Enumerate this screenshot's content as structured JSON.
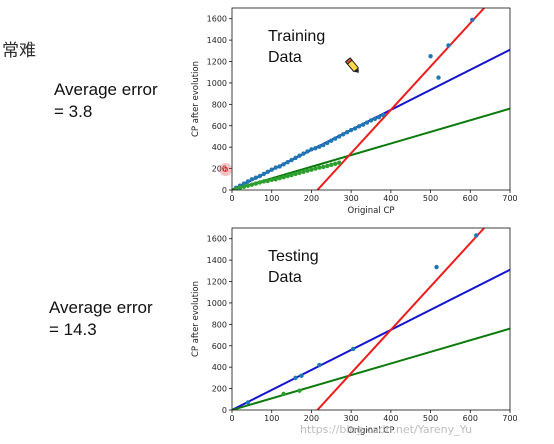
{
  "slide_fragment": "常难",
  "left_labels": [
    {
      "line1": "Average error",
      "line2": "= 3.8"
    },
    {
      "line1": "Average error",
      "line2": "= 14.3"
    }
  ],
  "watermark": "https://blog.csdn.net/Yareny_Yu",
  "icons": [
    "cursor-dot-icon",
    "pen-cursor-icon"
  ],
  "chart_data": [
    {
      "type": "scatter",
      "annotation": "Training\nData",
      "xlabel": "Original CP",
      "ylabel": "CP after evolution",
      "xlim": [
        0,
        700
      ],
      "ylim": [
        0,
        1700
      ],
      "xticks": [
        0,
        100,
        200,
        300,
        400,
        500,
        600,
        700
      ],
      "yticks": [
        0,
        200,
        400,
        600,
        800,
        1000,
        1200,
        1400,
        1600
      ],
      "grid": false,
      "series": [
        {
          "kind": "points",
          "color": "#1f77b4",
          "x": [
            10,
            20,
            30,
            40,
            50,
            60,
            70,
            80,
            90,
            100,
            110,
            120,
            130,
            140,
            150,
            160,
            170,
            180,
            190,
            200,
            210,
            220,
            230,
            240,
            250,
            260,
            270,
            280,
            290,
            300,
            310,
            320,
            330,
            340,
            350,
            360,
            370,
            380,
            500,
            520,
            545,
            605
          ],
          "y": [
            20,
            40,
            60,
            80,
            100,
            115,
            130,
            150,
            170,
            190,
            210,
            220,
            240,
            260,
            280,
            300,
            320,
            340,
            360,
            380,
            390,
            405,
            420,
            440,
            460,
            480,
            500,
            520,
            540,
            560,
            575,
            595,
            610,
            630,
            650,
            665,
            680,
            700,
            1250,
            1050,
            1350,
            1590
          ]
        },
        {
          "kind": "points",
          "color": "#2ca02c",
          "x": [
            10,
            20,
            30,
            40,
            50,
            60,
            70,
            80,
            90,
            100,
            110,
            120,
            130,
            140,
            150,
            160,
            170,
            180,
            190,
            200,
            210,
            220,
            230,
            240,
            250,
            260,
            270
          ],
          "y": [
            10,
            20,
            30,
            40,
            50,
            60,
            70,
            80,
            85,
            95,
            100,
            110,
            120,
            130,
            140,
            150,
            160,
            170,
            180,
            190,
            200,
            210,
            215,
            225,
            235,
            245,
            255
          ]
        },
        {
          "kind": "line",
          "color": "#1515d0",
          "x": [
            0,
            700
          ],
          "y": [
            0,
            1310
          ]
        },
        {
          "kind": "line",
          "color": "#0d7a0d",
          "x": [
            0,
            700
          ],
          "y": [
            0,
            760
          ]
        },
        {
          "kind": "line",
          "color": "#ee1c1c",
          "x": [
            215,
            635
          ],
          "y": [
            0,
            1700
          ]
        }
      ]
    },
    {
      "type": "scatter",
      "annotation": "Testing\nData",
      "xlabel": "Original CP",
      "ylabel": "CP after evolution",
      "xlim": [
        0,
        700
      ],
      "ylim": [
        0,
        1700
      ],
      "xticks": [
        0,
        100,
        200,
        300,
        400,
        500,
        600,
        700
      ],
      "yticks": [
        0,
        200,
        400,
        600,
        800,
        1000,
        1200,
        1400,
        1600
      ],
      "grid": false,
      "series": [
        {
          "kind": "points",
          "color": "#1f77b4",
          "x": [
            40,
            160,
            175,
            220,
            305,
            515,
            615
          ],
          "y": [
            70,
            300,
            320,
            420,
            570,
            1335,
            1630
          ]
        },
        {
          "kind": "points",
          "color": "#2ca02c",
          "x": [
            130,
            170
          ],
          "y": [
            150,
            180
          ]
        },
        {
          "kind": "line",
          "color": "#1515d0",
          "x": [
            0,
            700
          ],
          "y": [
            0,
            1310
          ]
        },
        {
          "kind": "line",
          "color": "#0d7a0d",
          "x": [
            0,
            700
          ],
          "y": [
            0,
            760
          ]
        },
        {
          "kind": "line",
          "color": "#ee1c1c",
          "x": [
            215,
            635
          ],
          "y": [
            0,
            1700
          ]
        }
      ]
    }
  ]
}
